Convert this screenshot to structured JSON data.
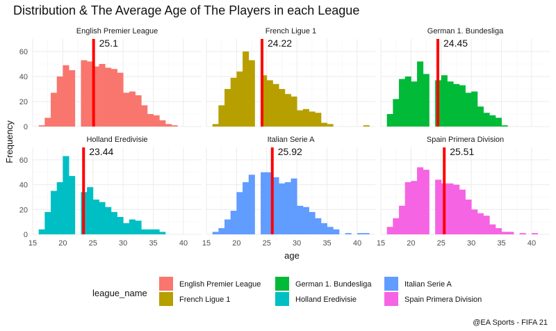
{
  "chart_data": {
    "type": "histogram",
    "title": "Distribution & The Average Age of The Players in each League",
    "xlabel": "age",
    "ylabel": "Frequency",
    "xlim": [
      15,
      43
    ],
    "ylim": [
      0,
      70
    ],
    "x_ticks": [
      15,
      20,
      25,
      30,
      35,
      40
    ],
    "y_ticks": [
      0,
      20,
      40,
      60
    ],
    "bins": [
      16,
      16.5,
      17,
      17.5,
      18,
      18.5,
      19,
      19.5,
      20,
      20.5,
      21,
      21.5,
      22,
      22.5,
      23,
      23.5,
      24,
      24.5,
      25,
      25.5,
      26,
      26.5,
      27,
      27.5,
      28,
      28.5,
      29,
      29.5,
      30,
      30.5,
      31,
      31.5,
      32,
      32.5,
      33,
      33.5,
      34,
      34.5,
      35,
      35.5,
      36,
      36.5,
      37,
      37.5,
      38,
      38.5,
      39,
      39.5,
      40,
      40.5,
      41,
      41.5,
      42
    ],
    "bin_width": 1,
    "legend_title": "league_name",
    "caption": "@EA Sports - FIFA 21",
    "series": [
      {
        "name": "English Premier League",
        "color": "#F8766D",
        "mean": 25.1,
        "mean_label": "25.1",
        "counts": {
          "16.5": 1,
          "17.5": 7,
          "18.5": 27,
          "19.5": 40,
          "20.5": 49,
          "21.5": 45,
          "23.5": 53,
          "24.5": 52,
          "25.5": 48,
          "26.5": 50,
          "27.5": 47,
          "28.5": 46,
          "29.5": 43,
          "30.5": 27,
          "31.5": 28,
          "32.5": 25,
          "33.5": 17,
          "34.5": 10,
          "35.5": 9,
          "36.5": 5,
          "37.5": 2,
          "38.5": 1
        }
      },
      {
        "name": "French Ligue 1",
        "color": "#B79F00",
        "mean": 24.22,
        "mean_label": "24.22",
        "counts": {
          "16.5": 2,
          "17.5": 17,
          "18.5": 30,
          "19.5": 39,
          "20.5": 44,
          "21.5": 60,
          "22.5": 53,
          "24.5": 41,
          "25.5": 37,
          "26.5": 34,
          "27.5": 30,
          "28.5": 26,
          "29.5": 24,
          "30.5": 13,
          "31.5": 14,
          "32.5": 12,
          "33.5": 11,
          "34.5": 3,
          "35.5": 2,
          "41.5": 1
        }
      },
      {
        "name": "German 1. Bundesliga",
        "color": "#00BA38",
        "mean": 24.45,
        "mean_label": "24.45",
        "counts": {
          "16.5": 10,
          "17.5": 22,
          "18.5": 38,
          "19.5": 40,
          "20.5": 36,
          "21.5": 52,
          "22.5": 42,
          "24.5": 37,
          "25.5": 41,
          "26.5": 36,
          "27.5": 34,
          "28.5": 33,
          "29.5": 27,
          "30.5": 28,
          "31.5": 16,
          "32.5": 11,
          "33.5": 9,
          "34.5": 7,
          "35.5": 1
        }
      },
      {
        "name": "Holland Eredivisie",
        "color": "#00BFC4",
        "mean": 23.44,
        "mean_label": "23.44",
        "counts": {
          "16.5": 4,
          "17.5": 18,
          "18.5": 35,
          "19.5": 42,
          "20.5": 63,
          "21.5": 47,
          "23.5": 34,
          "24.5": 38,
          "25.5": 28,
          "26.5": 26,
          "27.5": 22,
          "28.5": 18,
          "29.5": 14,
          "30.5": 9,
          "31.5": 12,
          "32.5": 11,
          "33.5": 4,
          "34.5": 4,
          "35.5": 4,
          "36.5": 2
        }
      },
      {
        "name": "Italian Serie A",
        "color": "#619CFF",
        "mean": 25.92,
        "mean_label": "25.92",
        "counts": {
          "16.5": 2,
          "17.5": 5,
          "18.5": 12,
          "19.5": 19,
          "20.5": 34,
          "21.5": 42,
          "22.5": 48,
          "24.5": 50,
          "25.5": 50,
          "26.5": 46,
          "27.5": 41,
          "28.5": 42,
          "29.5": 45,
          "30.5": 23,
          "31.5": 22,
          "32.5": 18,
          "33.5": 13,
          "34.5": 9,
          "35.5": 6,
          "36.5": 4,
          "38.5": 1,
          "40.5": 1,
          "41.5": 1
        }
      },
      {
        "name": "Spain Primera Division",
        "color": "#F564E3",
        "mean": 25.51,
        "mean_label": "25.51",
        "counts": {
          "16.5": 6,
          "17.5": 13,
          "18.5": 23,
          "19.5": 42,
          "20.5": 43,
          "21.5": 54,
          "22.5": 52,
          "24.5": 44,
          "25.5": 41,
          "26.5": 41,
          "27.5": 40,
          "28.5": 36,
          "29.5": 28,
          "30.5": 20,
          "31.5": 17,
          "32.5": 15,
          "33.5": 8,
          "34.5": 5,
          "35.5": 2,
          "36.5": 2,
          "38.5": 1,
          "40.5": 1
        }
      }
    ]
  }
}
